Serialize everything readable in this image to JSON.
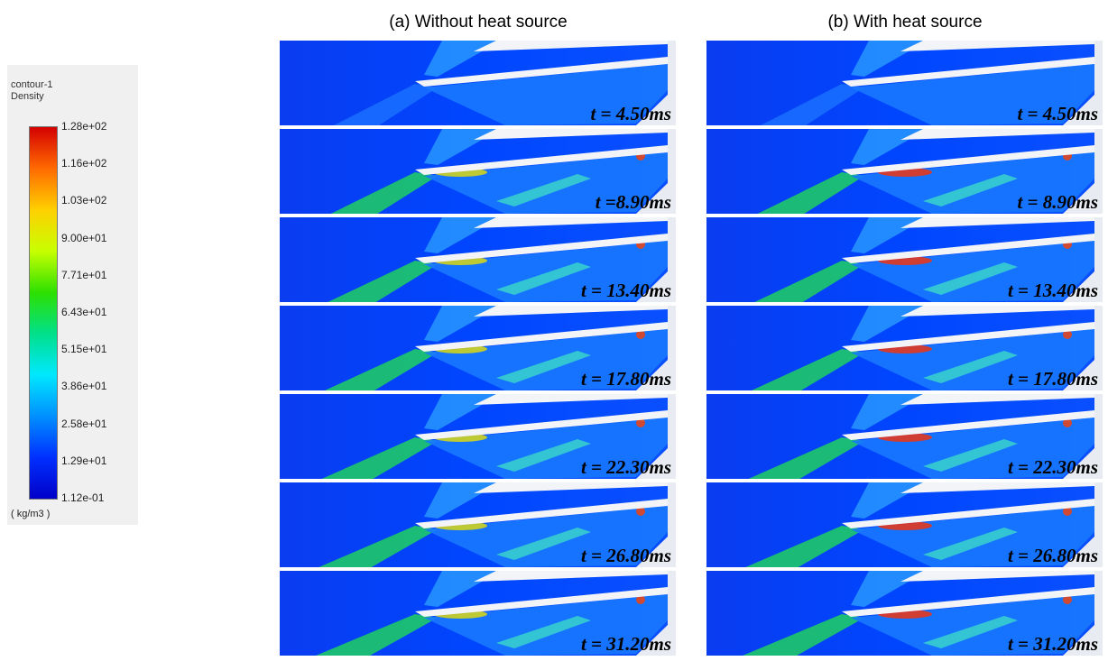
{
  "legend": {
    "name": "contour-1",
    "quantity": "Density",
    "ticks": [
      "1.28e+02",
      "1.16e+02",
      "1.03e+02",
      "9.00e+01",
      "7.71e+01",
      "6.43e+01",
      "5.15e+01",
      "3.86e+01",
      "2.58e+01",
      "1.29e+01",
      "1.12e-01"
    ],
    "unit": "( kg/m3 )"
  },
  "columns": [
    {
      "title": "(a) Without heat source",
      "panels": [
        "t = 4.50ms",
        "t =8.90ms",
        "t = 13.40ms",
        "t = 17.80ms",
        "t = 22.30ms",
        "t = 26.80ms",
        "t = 31.20ms"
      ]
    },
    {
      "title": "(b) With heat source",
      "panels": [
        "t = 4.50ms",
        "t = 8.90ms",
        "t = 13.40ms",
        "t = 17.80ms",
        "t = 22.30ms",
        "t = 26.80ms",
        "t = 31.20ms"
      ]
    }
  ]
}
